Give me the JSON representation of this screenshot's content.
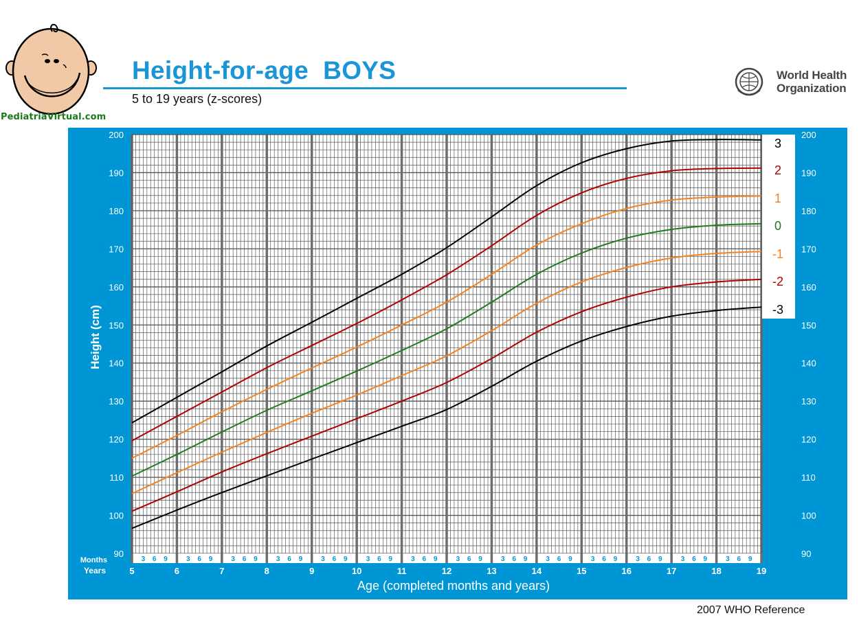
{
  "site_label": "PediatriaVirtual.com",
  "title": "Height-for-age  BOYS",
  "subtitle": "5 to 19 years (z-scores)",
  "who": {
    "line1": "World Health",
    "line2": "Organization"
  },
  "footer": "2007 WHO Reference",
  "colors": {
    "panel": "#0096d6",
    "title": "#1a96d8",
    "grid": "#555555",
    "z3": "#000000",
    "z2": "#b00000",
    "z1": "#f58220",
    "z0": "#1e7b1e"
  },
  "icons": {
    "logo": "baby-face-icon",
    "who": "who-emblem-icon"
  },
  "chart_data": {
    "type": "line",
    "title": "Height-for-age  BOYS",
    "subtitle": "5 to 19 years (z-scores)",
    "xlabel": "Age (completed months and years)",
    "ylabel": "Height (cm)",
    "xlim": [
      5,
      19
    ],
    "ylim": [
      90,
      200
    ],
    "yticks": [
      "90",
      "100",
      "110",
      "120",
      "130",
      "140",
      "150",
      "160",
      "170",
      "180",
      "190",
      "200"
    ],
    "year_ticks": [
      "5",
      "6",
      "7",
      "8",
      "9",
      "10",
      "11",
      "12",
      "13",
      "14",
      "15",
      "16",
      "17",
      "18",
      "19"
    ],
    "month_ticks": [
      "3",
      "6",
      "9"
    ],
    "months_label": "Months",
    "years_label": "Years",
    "grid": true,
    "x": [
      5,
      6,
      7,
      8,
      9,
      10,
      11,
      12,
      13,
      14,
      15,
      16,
      17,
      18,
      19
    ],
    "series": [
      {
        "name": "3",
        "color": "#000000",
        "values": [
          124.3,
          131.0,
          137.7,
          144.5,
          150.7,
          157.0,
          163.3,
          170.3,
          178.4,
          186.6,
          192.6,
          196.3,
          198.3,
          198.7,
          198.6
        ]
      },
      {
        "name": "2",
        "color": "#b00000",
        "values": [
          119.6,
          126.0,
          132.4,
          138.8,
          144.6,
          150.4,
          156.6,
          163.2,
          170.8,
          178.8,
          184.7,
          188.5,
          190.5,
          191.1,
          191.2
        ]
      },
      {
        "name": "1",
        "color": "#f58220",
        "values": [
          115.0,
          121.0,
          127.2,
          133.1,
          138.7,
          144.2,
          150.0,
          156.0,
          163.3,
          171.0,
          176.6,
          180.6,
          182.8,
          183.6,
          183.9
        ]
      },
      {
        "name": "0",
        "color": "#1e7b1e",
        "values": [
          110.3,
          116.0,
          121.9,
          127.6,
          132.7,
          137.9,
          143.3,
          149.0,
          156.0,
          163.3,
          168.9,
          172.8,
          175.1,
          176.2,
          176.6
        ]
      },
      {
        "name": "-1",
        "color": "#f58220",
        "values": [
          105.7,
          111.2,
          116.6,
          121.8,
          126.8,
          131.6,
          136.7,
          141.9,
          148.5,
          155.7,
          161.3,
          165.1,
          167.6,
          168.8,
          169.3
        ]
      },
      {
        "name": "-2",
        "color": "#b00000",
        "values": [
          101.1,
          106.2,
          111.4,
          116.2,
          120.8,
          125.4,
          130.0,
          134.9,
          141.2,
          148.1,
          153.5,
          157.3,
          160.0,
          161.3,
          162.0
        ]
      },
      {
        "name": "-3",
        "color": "#000000",
        "values": [
          96.6,
          101.4,
          106.0,
          110.4,
          114.8,
          119.1,
          123.4,
          127.8,
          133.9,
          140.5,
          145.8,
          149.6,
          152.3,
          153.8,
          154.7
        ]
      }
    ]
  }
}
